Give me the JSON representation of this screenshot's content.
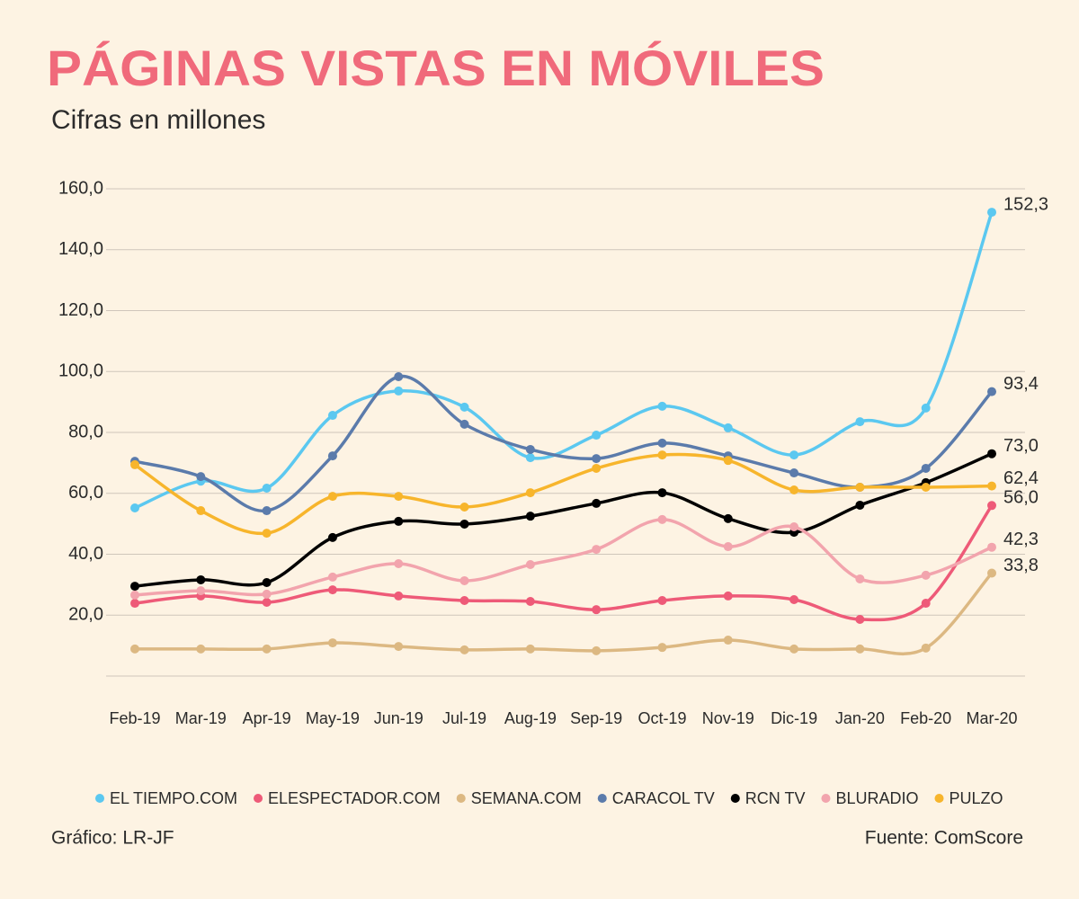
{
  "chart_data": {
    "type": "line",
    "title": "PÁGINAS VISTAS EN MÓVILES",
    "subtitle": "Cifras en millones",
    "credit": "Gráfico: LR-JF",
    "source": "Fuente: ComScore",
    "categories": [
      "Feb-19",
      "Mar-19",
      "Apr-19",
      "May-19",
      "Jun-19",
      "Jul-19",
      "Aug-19",
      "Sep-19",
      "Oct-19",
      "Nov-19",
      "Dic-19",
      "Jan-20",
      "Feb-20",
      "Mar-20"
    ],
    "ylim": [
      0,
      160
    ],
    "yticks": [
      {
        "value": 20,
        "label": "20,0"
      },
      {
        "value": 40,
        "label": "40,0"
      },
      {
        "value": 60,
        "label": "60,0"
      },
      {
        "value": 80,
        "label": "80,0"
      },
      {
        "value": 100,
        "label": "100,0"
      },
      {
        "value": 120,
        "label": "120,0"
      },
      {
        "value": 140,
        "label": "140,0"
      },
      {
        "value": 160,
        "label": "160,0"
      }
    ],
    "grid": true,
    "legend": "bottom",
    "series": [
      {
        "name": "EL TIEMPO.COM",
        "color": "#5bc8f0",
        "values": [
          55.2,
          64,
          61.7,
          85.6,
          93.6,
          88.3,
          71.7,
          79.1,
          88.6,
          81.5,
          72.6,
          83.5,
          88,
          152.3
        ],
        "value_labels": [
          null,
          null,
          null,
          null,
          null,
          null,
          null,
          null,
          null,
          null,
          null,
          null,
          null,
          "152,3"
        ]
      },
      {
        "name": "ELESPECTADOR.COM",
        "color": "#ee5a78",
        "values": [
          23.9,
          26.3,
          24.2,
          28.3,
          26.3,
          24.8,
          24.5,
          21.8,
          24.8,
          26.3,
          25.1,
          18.6,
          23.9,
          56.0
        ],
        "value_labels": [
          null,
          null,
          null,
          null,
          null,
          null,
          null,
          null,
          null,
          null,
          null,
          null,
          null,
          "56,0"
        ]
      },
      {
        "name": "SEMANA.COM",
        "color": "#dcb882",
        "values": [
          8.9,
          8.9,
          8.9,
          10.9,
          9.7,
          8.6,
          8.9,
          8.3,
          9.4,
          11.8,
          8.9,
          8.9,
          9.2,
          33.8
        ],
        "value_labels": [
          null,
          null,
          null,
          null,
          null,
          null,
          null,
          null,
          null,
          null,
          null,
          null,
          null,
          "33,8"
        ]
      },
      {
        "name": "CARACOL TV",
        "color": "#5b7bab",
        "values": [
          70.5,
          65.5,
          54.3,
          72.3,
          98.3,
          82.7,
          74.4,
          71.4,
          76.5,
          72.3,
          66.7,
          62,
          68.2,
          93.4
        ],
        "value_labels": [
          null,
          null,
          null,
          null,
          null,
          null,
          null,
          null,
          null,
          null,
          null,
          null,
          null,
          "93,4"
        ]
      },
      {
        "name": "RCN TV",
        "color": "#000000",
        "values": [
          29.5,
          31.6,
          30.7,
          45.5,
          50.8,
          49.9,
          52.5,
          56.7,
          60.2,
          51.7,
          47.2,
          56.1,
          63.5,
          73.0
        ],
        "value_labels": [
          null,
          null,
          null,
          null,
          null,
          null,
          null,
          null,
          null,
          null,
          null,
          null,
          null,
          "73,0"
        ]
      },
      {
        "name": "BLURADIO",
        "color": "#f2a4ad",
        "values": [
          26.6,
          28,
          26.9,
          32.5,
          36.9,
          31.3,
          36.6,
          41.6,
          51.4,
          42.5,
          49,
          31.9,
          33.1,
          42.3
        ],
        "value_labels": [
          null,
          null,
          null,
          null,
          null,
          null,
          null,
          null,
          null,
          null,
          null,
          null,
          null,
          "42,3"
        ]
      },
      {
        "name": "PULZO",
        "color": "#f7b52c",
        "values": [
          69.4,
          54.3,
          46.9,
          59,
          59,
          55.5,
          60.2,
          68.2,
          72.6,
          70.8,
          61.1,
          62,
          62,
          62.4
        ],
        "value_labels": [
          null,
          null,
          null,
          null,
          null,
          null,
          null,
          null,
          null,
          null,
          null,
          null,
          null,
          "62,4"
        ]
      }
    ]
  }
}
